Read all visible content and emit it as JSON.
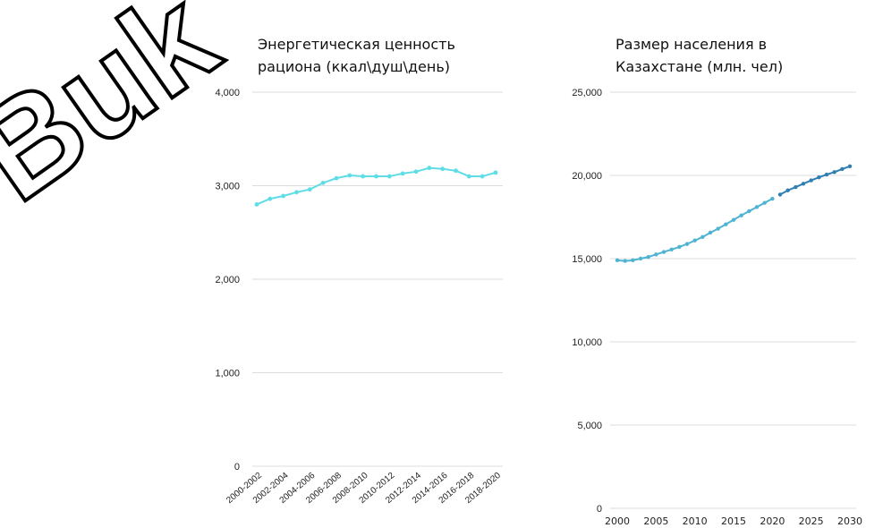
{
  "watermark": "Buk",
  "chart_data": [
    {
      "type": "line",
      "title_line1": "Энергетическая ценность",
      "title_line2": "рациона (ккал\\душ\\день)",
      "categories": [
        "2000-2002",
        "2001-2003",
        "2002-2004",
        "2003-2005",
        "2004-2006",
        "2005-2007",
        "2006-2008",
        "2007-2009",
        "2008-2010",
        "2009-2011",
        "2010-2012",
        "2011-2013",
        "2012-2014",
        "2013-2015",
        "2014-2016",
        "2015-2017",
        "2016-2018",
        "2017-2019",
        "2018-2020"
      ],
      "x_tick_labels": [
        "2000-2002",
        "2002-2004",
        "2004-2006",
        "2006-2008",
        "2008-2010",
        "2010-2012",
        "2012-2014",
        "2014-2016",
        "2016-2018",
        "2018-2020"
      ],
      "values": [
        2800,
        2860,
        2890,
        2930,
        2960,
        3030,
        3080,
        3110,
        3100,
        3100,
        3100,
        3130,
        3150,
        3190,
        3180,
        3160,
        3100,
        3100,
        3140
      ],
      "ylim": [
        0,
        4000
      ],
      "y_ticks": [
        "0",
        "1,000",
        "2,000",
        "3,000",
        "4,000"
      ],
      "color": "#5fdde6",
      "grid": true
    },
    {
      "type": "line",
      "title_line1": "Размер населения в",
      "title_line2": "Казахстане (млн. чел)",
      "x": [
        2000,
        2001,
        2002,
        2003,
        2004,
        2005,
        2006,
        2007,
        2008,
        2009,
        2010,
        2011,
        2012,
        2013,
        2014,
        2015,
        2016,
        2017,
        2018,
        2019,
        2020,
        2021,
        2022,
        2023,
        2024,
        2025,
        2026,
        2027,
        2028,
        2029,
        2030
      ],
      "values": [
        14900,
        14860,
        14900,
        15000,
        15100,
        15250,
        15400,
        15550,
        15700,
        15880,
        16090,
        16300,
        16560,
        16800,
        17060,
        17330,
        17600,
        17850,
        18100,
        18350,
        18600,
        18850,
        19100,
        19300,
        19500,
        19700,
        19880,
        20050,
        20200,
        20380,
        20550
      ],
      "series_split_year": 2020,
      "ylim": [
        0,
        25000
      ],
      "y_ticks": [
        "0",
        "5,000",
        "10,000",
        "15,000",
        "20,000",
        "25,000"
      ],
      "x_ticks": [
        "2000",
        "2005",
        "2010",
        "2015",
        "2020",
        "2025",
        "2030"
      ],
      "color_estimate": "#4fb3d2",
      "color_projection": "#2f7fb3",
      "grid": true
    }
  ]
}
